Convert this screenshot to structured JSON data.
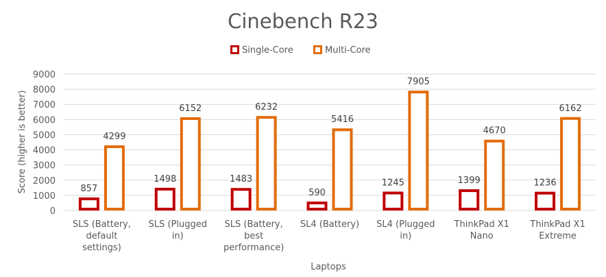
{
  "chart_data": {
    "type": "bar",
    "title": "Cinebench R23",
    "xlabel": "Laptops",
    "ylabel": "Score (higher is better)",
    "ylim": [
      0,
      9000
    ],
    "yticks": [
      0,
      1000,
      2000,
      3000,
      4000,
      5000,
      6000,
      7000,
      8000,
      9000
    ],
    "grid": true,
    "legend_position": "top",
    "categories": [
      [
        "SLS (Battery,",
        "default",
        "settings)"
      ],
      [
        "SLS (Plugged",
        "in)"
      ],
      [
        "SLS (Battery,",
        "best",
        "performance)"
      ],
      [
        "SL4 (Battery)"
      ],
      [
        "SL4 (Plugged",
        "in)"
      ],
      [
        "ThinkPad X1",
        "Nano"
      ],
      [
        "ThinkPad X1",
        "Extreme"
      ]
    ],
    "series": [
      {
        "name": "Single-Core",
        "color": "#C00000",
        "values": [
          857,
          1498,
          1483,
          590,
          1245,
          1399,
          1236
        ]
      },
      {
        "name": "Multi-Core",
        "color": "#E36C0A",
        "values": [
          4299,
          6152,
          6232,
          5416,
          7905,
          4670,
          6162
        ]
      }
    ]
  }
}
